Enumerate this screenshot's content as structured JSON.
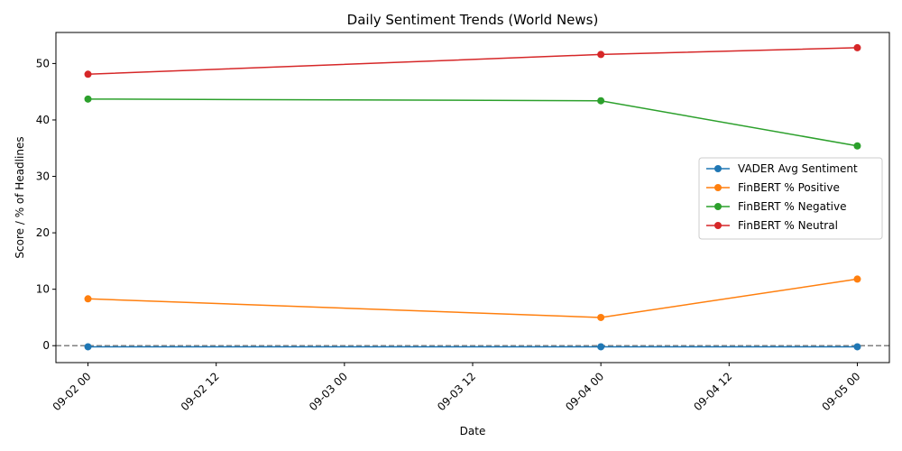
{
  "chart_data": {
    "type": "line",
    "title": "Daily Sentiment Trends (World News)",
    "xlabel": "Date",
    "ylabel": "Score / % of Headlines",
    "x": [
      "2024-09-02T00:00",
      "2024-09-04T00:00",
      "2024-09-05T00:00"
    ],
    "xlim": [
      "2024-09-01T21:00",
      "2024-09-05T03:00"
    ],
    "xticks": [
      "09-02 00",
      "09-02 12",
      "09-03 00",
      "09-03 12",
      "09-04 00",
      "09-04 12",
      "09-05 00"
    ],
    "ylim": [
      -3,
      55.5
    ],
    "yticks": [
      0,
      10,
      20,
      30,
      40,
      50
    ],
    "reference_line": {
      "y": 0,
      "style": "dashed",
      "color": "#808080"
    },
    "legend_position": "center-right",
    "grid": false,
    "series": [
      {
        "name": "VADER Avg Sentiment",
        "color": "#1f77b4",
        "values": [
          -0.2,
          -0.2,
          -0.2
        ]
      },
      {
        "name": "FinBERT % Positive",
        "color": "#ff7f0e",
        "values": [
          8.3,
          5.0,
          11.8
        ]
      },
      {
        "name": "FinBERT % Negative",
        "color": "#2ca02c",
        "values": [
          43.7,
          43.4,
          35.4
        ]
      },
      {
        "name": "FinBERT % Neutral",
        "color": "#d62728",
        "values": [
          48.1,
          51.6,
          52.8
        ]
      }
    ]
  }
}
